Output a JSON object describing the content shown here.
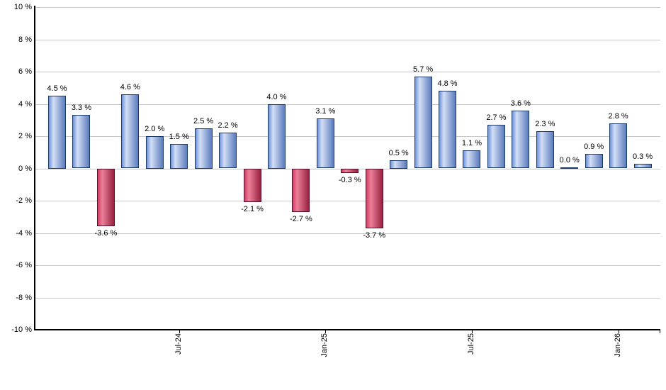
{
  "chart_data": {
    "type": "bar",
    "title": "",
    "xlabel": "",
    "ylabel": "",
    "ylim": [
      -10,
      10
    ],
    "grid": true,
    "legend": false,
    "y_ticks": [
      {
        "value": 10,
        "label": "10 %"
      },
      {
        "value": 8,
        "label": "8 %"
      },
      {
        "value": 6,
        "label": "6 %"
      },
      {
        "value": 4,
        "label": "4 %"
      },
      {
        "value": 2,
        "label": "2 %"
      },
      {
        "value": 0,
        "label": "0 %"
      },
      {
        "value": -2,
        "label": "-2 %"
      },
      {
        "value": -4,
        "label": "-4 %"
      },
      {
        "value": -6,
        "label": "-6 %"
      },
      {
        "value": -8,
        "label": "-8 %"
      },
      {
        "value": -10,
        "label": "-10 %"
      }
    ],
    "x_ticks": [
      {
        "bar_index": 5,
        "label": "Jul-24"
      },
      {
        "bar_index": 11,
        "label": "Jan-25"
      },
      {
        "bar_index": 17,
        "label": "Jul-25"
      },
      {
        "bar_index": 23,
        "label": "Jan-26"
      }
    ],
    "right_edge_tick": true,
    "bars": [
      {
        "value": 4.5,
        "label": "4.5 %"
      },
      {
        "value": 3.3,
        "label": "3.3 %"
      },
      {
        "value": -3.6,
        "label": "-3.6 %"
      },
      {
        "value": 4.6,
        "label": "4.6 %"
      },
      {
        "value": 2.0,
        "label": "2.0 %"
      },
      {
        "value": 1.5,
        "label": "1.5 %"
      },
      {
        "value": 2.5,
        "label": "2.5 %"
      },
      {
        "value": 2.2,
        "label": "2.2 %"
      },
      {
        "value": -2.1,
        "label": "-2.1 %"
      },
      {
        "value": 4.0,
        "label": "4.0 %"
      },
      {
        "value": -2.7,
        "label": "-2.7 %"
      },
      {
        "value": 3.1,
        "label": "3.1 %"
      },
      {
        "value": -0.3,
        "label": "-0.3 %"
      },
      {
        "value": -3.7,
        "label": "-3.7 %"
      },
      {
        "value": 0.5,
        "label": "0.5 %"
      },
      {
        "value": 5.7,
        "label": "5.7 %"
      },
      {
        "value": 4.8,
        "label": "4.8 %"
      },
      {
        "value": 1.1,
        "label": "1.1 %"
      },
      {
        "value": 2.7,
        "label": "2.7 %"
      },
      {
        "value": 3.6,
        "label": "3.6 %"
      },
      {
        "value": 2.3,
        "label": "2.3 %"
      },
      {
        "value": 0.0,
        "label": "0.0 %"
      },
      {
        "value": 0.9,
        "label": "0.9 %"
      },
      {
        "value": 2.8,
        "label": "2.8 %"
      },
      {
        "value": 0.3,
        "label": "0.3 %"
      }
    ],
    "colors": {
      "positive": {
        "border": "#1b3a66",
        "gradient": [
          "#6d92da",
          "#d3dff5",
          "#5a7bbd"
        ]
      },
      "negative": {
        "border": "#5c0e2b",
        "gradient": [
          "#cf3d64",
          "#ec8099",
          "#97203f"
        ]
      },
      "gridline": "#c9c9c9",
      "axis": "#000000",
      "text": "#000000"
    }
  }
}
